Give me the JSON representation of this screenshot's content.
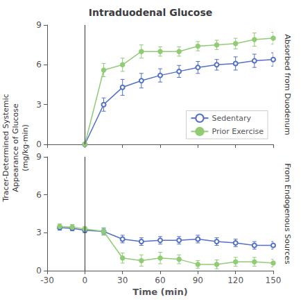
{
  "chart_data": [
    {
      "type": "line",
      "title": "Intraduodenal Glucose",
      "ylabel": "Absorbed from Duodenum",
      "annotations": [
        "Tracer-Determined Systemic\nAppearance of Glucose\n(mg/kg·min)"
      ],
      "xlim": [
        -30,
        150
      ],
      "xticks": [
        -30,
        0,
        30,
        60,
        90,
        120,
        150
      ],
      "ylim": [
        0,
        9
      ],
      "yticks": [
        0,
        3,
        6,
        9
      ],
      "grid": false,
      "legend": "lower right",
      "tick_labels": "y",
      "vline_x": 0,
      "series": [
        {
          "name": "Sedentary",
          "marker": "open_circle",
          "x": [
            0,
            15,
            30,
            45,
            60,
            75,
            90,
            105,
            120,
            135,
            150
          ],
          "values": [
            0.0,
            3.0,
            4.3,
            4.8,
            5.2,
            5.5,
            5.8,
            6.0,
            6.1,
            6.3,
            6.4
          ],
          "errors": [
            0.0,
            0.5,
            0.6,
            0.55,
            0.5,
            0.45,
            0.45,
            0.4,
            0.5,
            0.5,
            0.5
          ]
        },
        {
          "name": "Prior Exercise",
          "marker": "circle",
          "x": [
            0,
            15,
            30,
            45,
            60,
            75,
            90,
            105,
            120,
            135,
            150
          ],
          "values": [
            0.0,
            5.6,
            6.0,
            7.0,
            7.0,
            7.0,
            7.4,
            7.5,
            7.6,
            7.9,
            8.0
          ],
          "errors": [
            0.0,
            0.5,
            0.5,
            0.5,
            0.35,
            0.35,
            0.35,
            0.35,
            0.4,
            0.5,
            0.45
          ]
        }
      ]
    },
    {
      "type": "line",
      "xlabel": "Time (min)",
      "ylabel": "From Endogenous Sources",
      "xlim": [
        -30,
        150
      ],
      "xticks": [
        -30,
        0,
        30,
        60,
        90,
        120,
        150
      ],
      "ylim": [
        0,
        9
      ],
      "yticks": [
        0,
        3,
        6,
        9
      ],
      "grid": false,
      "vline_x": 0,
      "series": [
        {
          "marker": "open_circle",
          "x": [
            -20,
            -10,
            0,
            15,
            30,
            45,
            60,
            75,
            90,
            105,
            120,
            135,
            150
          ],
          "values": [
            3.4,
            3.35,
            3.2,
            3.1,
            2.5,
            2.3,
            2.4,
            2.4,
            2.5,
            2.3,
            2.2,
            2.0,
            2.0
          ],
          "errors": [
            0.2,
            0.2,
            0.2,
            0.25,
            0.3,
            0.3,
            0.3,
            0.3,
            0.3,
            0.3,
            0.3,
            0.3,
            0.3
          ]
        },
        {
          "marker": "circle",
          "x": [
            -20,
            -10,
            0,
            15,
            30,
            45,
            60,
            75,
            90,
            105,
            120,
            135,
            150
          ],
          "values": [
            3.5,
            3.45,
            3.3,
            3.1,
            1.0,
            0.8,
            1.0,
            0.9,
            0.5,
            0.5,
            0.7,
            0.7,
            0.6
          ],
          "errors": [
            0.2,
            0.2,
            0.2,
            0.3,
            0.4,
            0.45,
            0.45,
            0.35,
            0.3,
            0.35,
            0.35,
            0.35,
            0.3
          ]
        }
      ]
    }
  ]
}
